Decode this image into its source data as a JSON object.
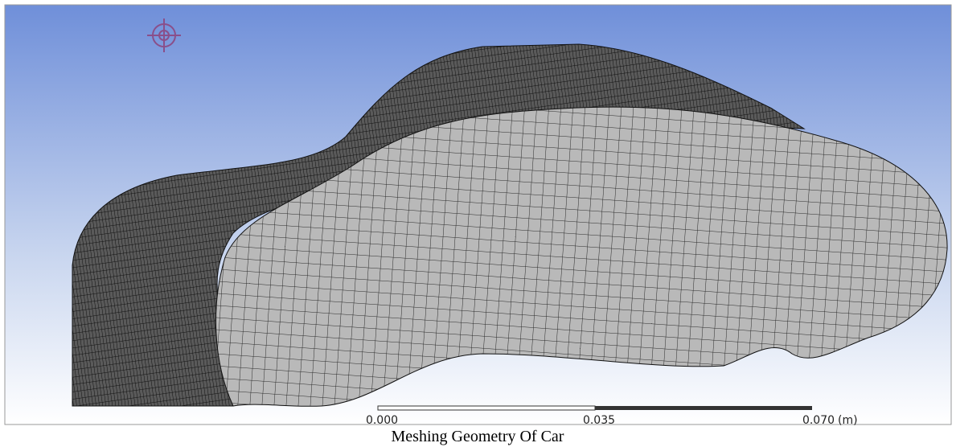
{
  "viewport": {
    "scale_bar": {
      "labels": [
        "0.000",
        "0.035",
        "0.070"
      ],
      "unit": "(m)"
    }
  },
  "caption": "Meshing Geometry Of Car"
}
